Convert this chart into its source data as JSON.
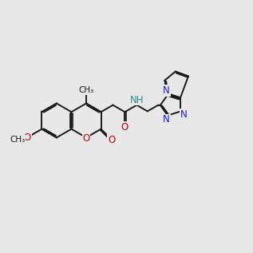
{
  "bg_color": "#e8e8e8",
  "bond_color": "#1a1a1a",
  "oxygen_color": "#cc0000",
  "nitrogen_color": "#1a1aee",
  "nh_color": "#2a9090",
  "lw": 1.4,
  "fs": 8.5,
  "fs_small": 7.5
}
